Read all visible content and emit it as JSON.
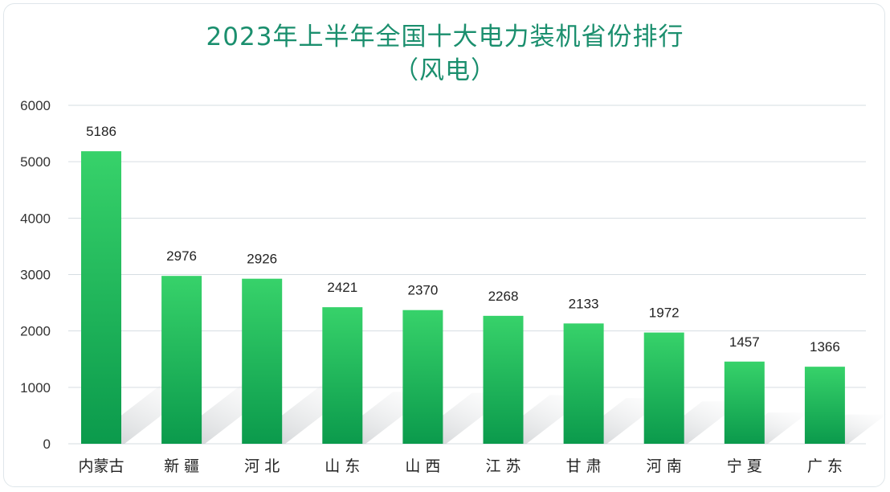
{
  "chart_data": {
    "type": "bar",
    "title": "2023年上半年全国十大电力装机省份排行",
    "subtitle": "（风电）",
    "categories": [
      "内蒙古",
      "新 疆",
      "河 北",
      "山 东",
      "山 西",
      "江 苏",
      "甘 肃",
      "河 南",
      "宁 夏",
      "广 东"
    ],
    "values": [
      5186,
      2976,
      2926,
      2421,
      2370,
      2268,
      2133,
      1972,
      1457,
      1366
    ],
    "y_ticks": [
      "0",
      "1000",
      "2000",
      "3000",
      "4000",
      "5000",
      "6000"
    ],
    "ylim": [
      0,
      6000
    ],
    "xlabel": "",
    "ylabel": "",
    "grid": true,
    "legend": "none",
    "bar_color_top": "#37d26a",
    "bar_color_bottom": "#0b9a4c",
    "title_color": "#1b8f6e"
  }
}
